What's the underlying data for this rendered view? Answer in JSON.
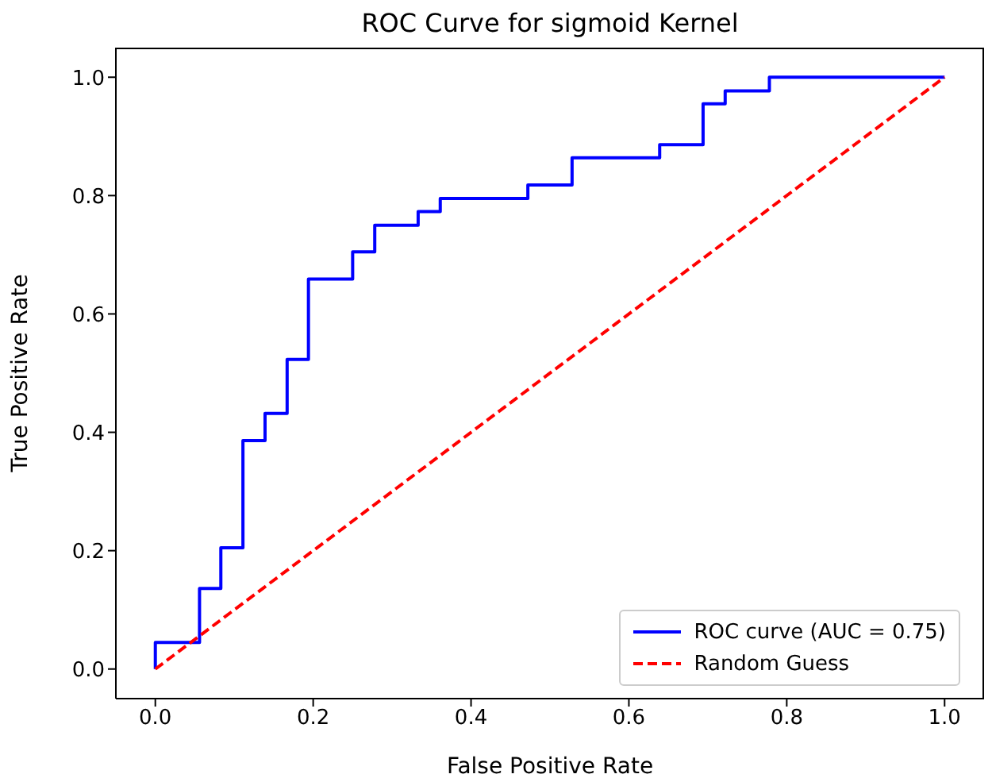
{
  "chart_data": {
    "type": "line",
    "title": "ROC Curve for sigmoid Kernel",
    "xlabel": "False Positive Rate",
    "ylabel": "True Positive Rate",
    "xlim": [
      -0.05,
      1.05
    ],
    "ylim": [
      -0.05,
      1.05
    ],
    "xticks": [
      {
        "value": 0,
        "label": "0.0"
      },
      {
        "value": 0.2,
        "label": "0.2"
      },
      {
        "value": 0.4,
        "label": "0.4"
      },
      {
        "value": 0.6,
        "label": "0.6"
      },
      {
        "value": 0.8,
        "label": "0.8"
      },
      {
        "value": 1,
        "label": "1.0"
      }
    ],
    "yticks": [
      {
        "value": 0,
        "label": "0.0"
      },
      {
        "value": 0.2,
        "label": "0.2"
      },
      {
        "value": 0.4,
        "label": "0.4"
      },
      {
        "value": 0.6,
        "label": "0.6"
      },
      {
        "value": 0.8,
        "label": "0.8"
      },
      {
        "value": 1,
        "label": "1.0"
      }
    ],
    "legend": "bottom right",
    "grid": false,
    "series": [
      {
        "name": "ROC curve (AUC = 0.75)",
        "type": "step",
        "color": "#0000ff",
        "line_style": "solid",
        "x": [
          0,
          0,
          0.056,
          0.083,
          0.111,
          0.139,
          0.167,
          0.194,
          0.25,
          0.278,
          0.333,
          0.361,
          0.472,
          0.528,
          0.639,
          0.694,
          0.722,
          0.778,
          1
        ],
        "values": [
          0,
          0.045,
          0.136,
          0.205,
          0.386,
          0.432,
          0.523,
          0.659,
          0.705,
          0.75,
          0.773,
          0.795,
          0.818,
          0.864,
          0.886,
          0.955,
          0.977,
          1,
          1
        ]
      },
      {
        "name": "Random Guess",
        "type": "line",
        "color": "#ff0000",
        "line_style": "dashed",
        "x": [
          0,
          1
        ],
        "values": [
          0,
          1
        ]
      }
    ]
  }
}
